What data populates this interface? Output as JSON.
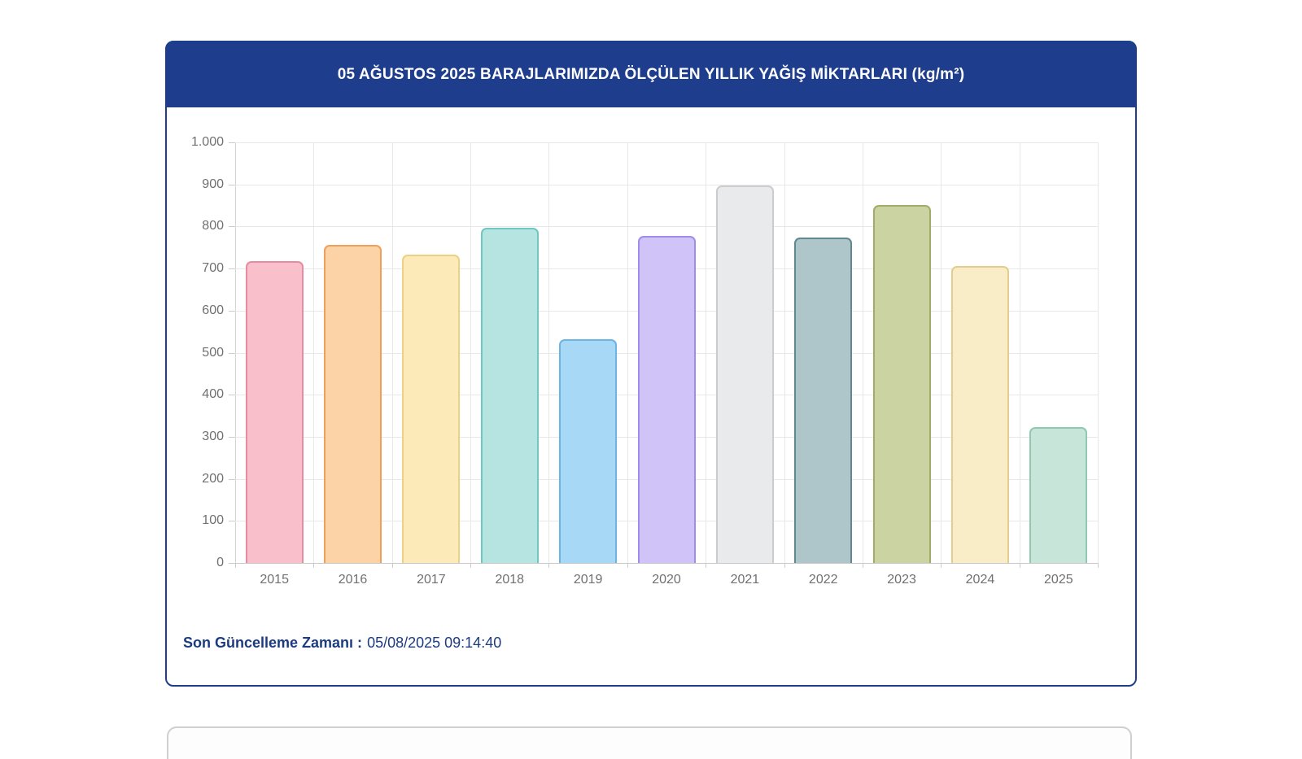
{
  "card": {
    "title": "05 AĞUSTOS 2025 BARAJLARIMIZDA ÖLÇÜLEN YILLIK YAĞIŞ MİKTARLARI (kg/m²)",
    "footer": {
      "label": "Son Güncelleme Zamanı :",
      "value": "05/08/2025 09:14:40"
    }
  },
  "colors": {
    "header_bg": "#1e3d8c",
    "card_border": "#1e3d8c",
    "footer_text": "#1c3b80",
    "grid_line": "#e8e8e8",
    "axis_line": "#c9c9c9",
    "tick": "#cccccc",
    "axis_label": "#707070"
  },
  "chart_data": {
    "type": "bar",
    "title": "05 AĞUSTOS 2025 BARAJLARIMIZDA ÖLÇÜLEN YILLIK YAĞIŞ MİKTARLARI (kg/m²)",
    "categories": [
      "2015",
      "2016",
      "2017",
      "2018",
      "2019",
      "2020",
      "2021",
      "2022",
      "2023",
      "2024",
      "2025"
    ],
    "values": [
      717,
      756,
      733,
      797,
      531,
      777,
      898,
      773,
      851,
      706,
      323
    ],
    "bar_fill_colors": [
      "#f9bfcb",
      "#fbd3a7",
      "#fceab8",
      "#b6e5e1",
      "#a7d8f5",
      "#d0c3f8",
      "#e9eaec",
      "#aec5c9",
      "#ccd3a2",
      "#f8edc7",
      "#c7e5d8"
    ],
    "bar_border_colors": [
      "#e58ca3",
      "#eda05c",
      "#eed084",
      "#6ec7c1",
      "#6cb4e4",
      "#a18cec",
      "#cbccd0",
      "#60898f",
      "#a3ab67",
      "#e3cd8e",
      "#90c8b0"
    ],
    "xlabel": "",
    "ylabel": "",
    "ylim": [
      0,
      1000
    ],
    "ytick_labels": [
      "1.000",
      "900",
      "800",
      "700",
      "600",
      "500",
      "400",
      "300",
      "200",
      "100",
      "0"
    ],
    "ytick_values": [
      1000,
      900,
      800,
      700,
      600,
      500,
      400,
      300,
      200,
      100,
      0
    ],
    "grid": true,
    "legend": false
  }
}
